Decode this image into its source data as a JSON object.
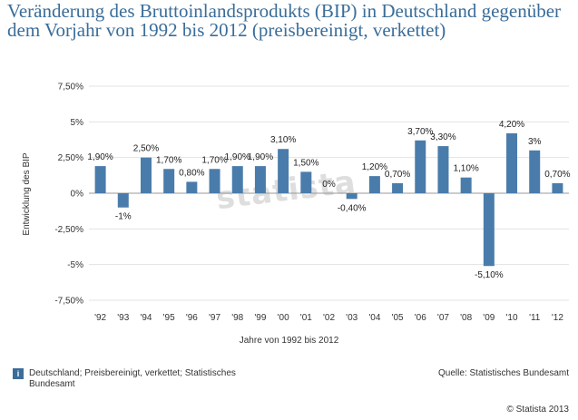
{
  "title": "Veränderung des Bruttoinlandsprodukts (BIP) in Deutschland gegenüber dem Vorjahr von 1992 bis 2012 (preisbereinigt, verkettet)",
  "watermark": "statista",
  "footer_note": "Deutschland; Preisbereinigt, verkettet; Statistisches Bundesamt",
  "info_icon": "info-icon",
  "source": "Quelle: Statistisches Bundesamt",
  "copyright": "© Statista 2013",
  "colors": {
    "bar": "#4a7cab",
    "title": "#3a6d99",
    "grid": "#e3e3e3",
    "axis": "#999999"
  },
  "chart_data": {
    "type": "bar",
    "title": "Veränderung des Bruttoinlandsprodukts (BIP) in Deutschland gegenüber dem Vorjahr von 1992 bis 2012 (preisbereinigt, verkettet)",
    "xlabel": "Jahre von 1992 bis 2012",
    "ylabel": "Entwicklung des BIP",
    "categories": [
      "'92",
      "'93",
      "'94",
      "'95",
      "'96",
      "'97",
      "'98",
      "'99",
      "'00",
      "'01",
      "'02",
      "'03",
      "'04",
      "'05",
      "'06",
      "'07",
      "'08",
      "'09",
      "'10",
      "'11",
      "'12"
    ],
    "values": [
      1.9,
      -1.0,
      2.5,
      1.7,
      0.8,
      1.7,
      1.9,
      1.9,
      3.1,
      1.5,
      0.0,
      -0.4,
      1.2,
      0.7,
      3.7,
      3.3,
      1.1,
      -5.1,
      4.2,
      3.0,
      0.7
    ],
    "data_labels": [
      "1,90%",
      "-1%",
      "2,50%",
      "1,70%",
      "0,80%",
      "1,70%",
      "1,90%",
      "1,90%",
      "3,10%",
      "1,50%",
      "0%",
      "-0,40%",
      "1,20%",
      "0,70%",
      "3,70%",
      "3,30%",
      "1,10%",
      "-5,10%",
      "4,20%",
      "3%",
      "0,70%"
    ],
    "ylim": [
      -7.5,
      7.5
    ],
    "yticks": [
      7.5,
      5,
      2.5,
      0,
      -2.5,
      -5,
      -7.5
    ],
    "ytick_labels": [
      "7,50%",
      "5%",
      "2,50%",
      "0%",
      "-2,50%",
      "-5%",
      "-7,50%"
    ],
    "grid": true,
    "legend": "none"
  }
}
